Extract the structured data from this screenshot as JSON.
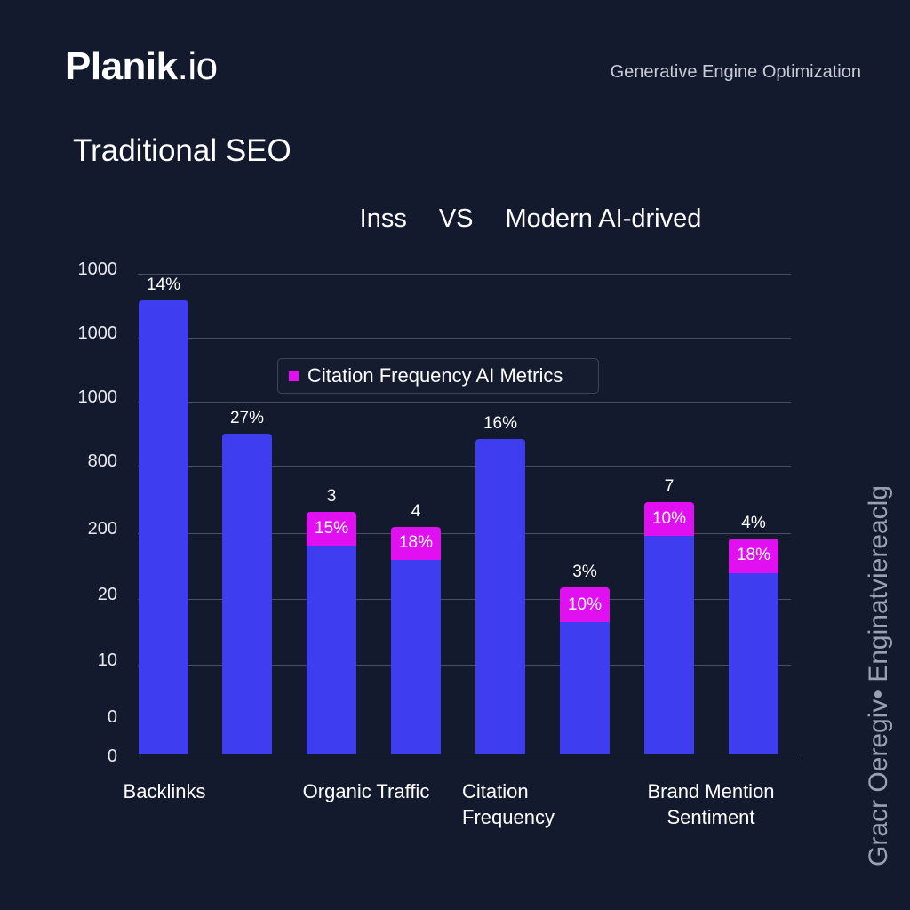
{
  "header": {
    "logo_main": "Planik",
    "logo_suffix": ".io",
    "tagline": "Generative Engine Optimization"
  },
  "side_text": "Gracr Oeregiv• Enginatvіereaclg",
  "colors": {
    "background": "#141a2e",
    "traditional": "#3e3ef0",
    "ai": "#e010f0"
  },
  "chart_data": {
    "type": "bar",
    "title": "Traditional SEO",
    "subtitle": {
      "left": "Inss",
      "vs": "VS",
      "right": "Modern AI-drived"
    },
    "y_ticks": [
      "1000",
      "1000",
      "1000",
      "800",
      "200",
      "20",
      "10",
      "0",
      "0"
    ],
    "y_scale_note_visible": false,
    "grid": true,
    "legend": {
      "label": "Citation Frequency AI Metrics",
      "position": "center"
    },
    "categories": [
      "Backlinks",
      "Organic Traffic",
      "Citation Frequency",
      "Brand Mention Sentiment"
    ],
    "bars": [
      {
        "level": 0.938,
        "ai_level": 0,
        "top_label": "14%",
        "ai_label": ""
      },
      {
        "level": 0.661,
        "ai_level": 0,
        "top_label": "27%",
        "ai_label": ""
      },
      {
        "level": 0.5,
        "ai_level": 0.069,
        "top_label": "3",
        "ai_label": "15%"
      },
      {
        "level": 0.469,
        "ai_level": 0.068,
        "top_label": "4",
        "ai_label": "18%"
      },
      {
        "level": 0.65,
        "ai_level": 0,
        "top_label": "16%",
        "ai_label": ""
      },
      {
        "level": 0.343,
        "ai_level": 0.071,
        "top_label": "3%",
        "ai_label": "10%"
      },
      {
        "level": 0.52,
        "ai_level": 0.069,
        "top_label": "7",
        "ai_label": "10%"
      },
      {
        "level": 0.445,
        "ai_level": 0.071,
        "top_label": "4%",
        "ai_label": "18%"
      }
    ],
    "category_labels": [
      {
        "line1": "Backlinks",
        "line2": ""
      },
      {
        "line1": "Organic Traffic",
        "line2": ""
      },
      {
        "line1": "Citation",
        "line2": "Frequency"
      },
      {
        "line1": "Brand Mention",
        "line2": "Sentiment"
      }
    ]
  }
}
